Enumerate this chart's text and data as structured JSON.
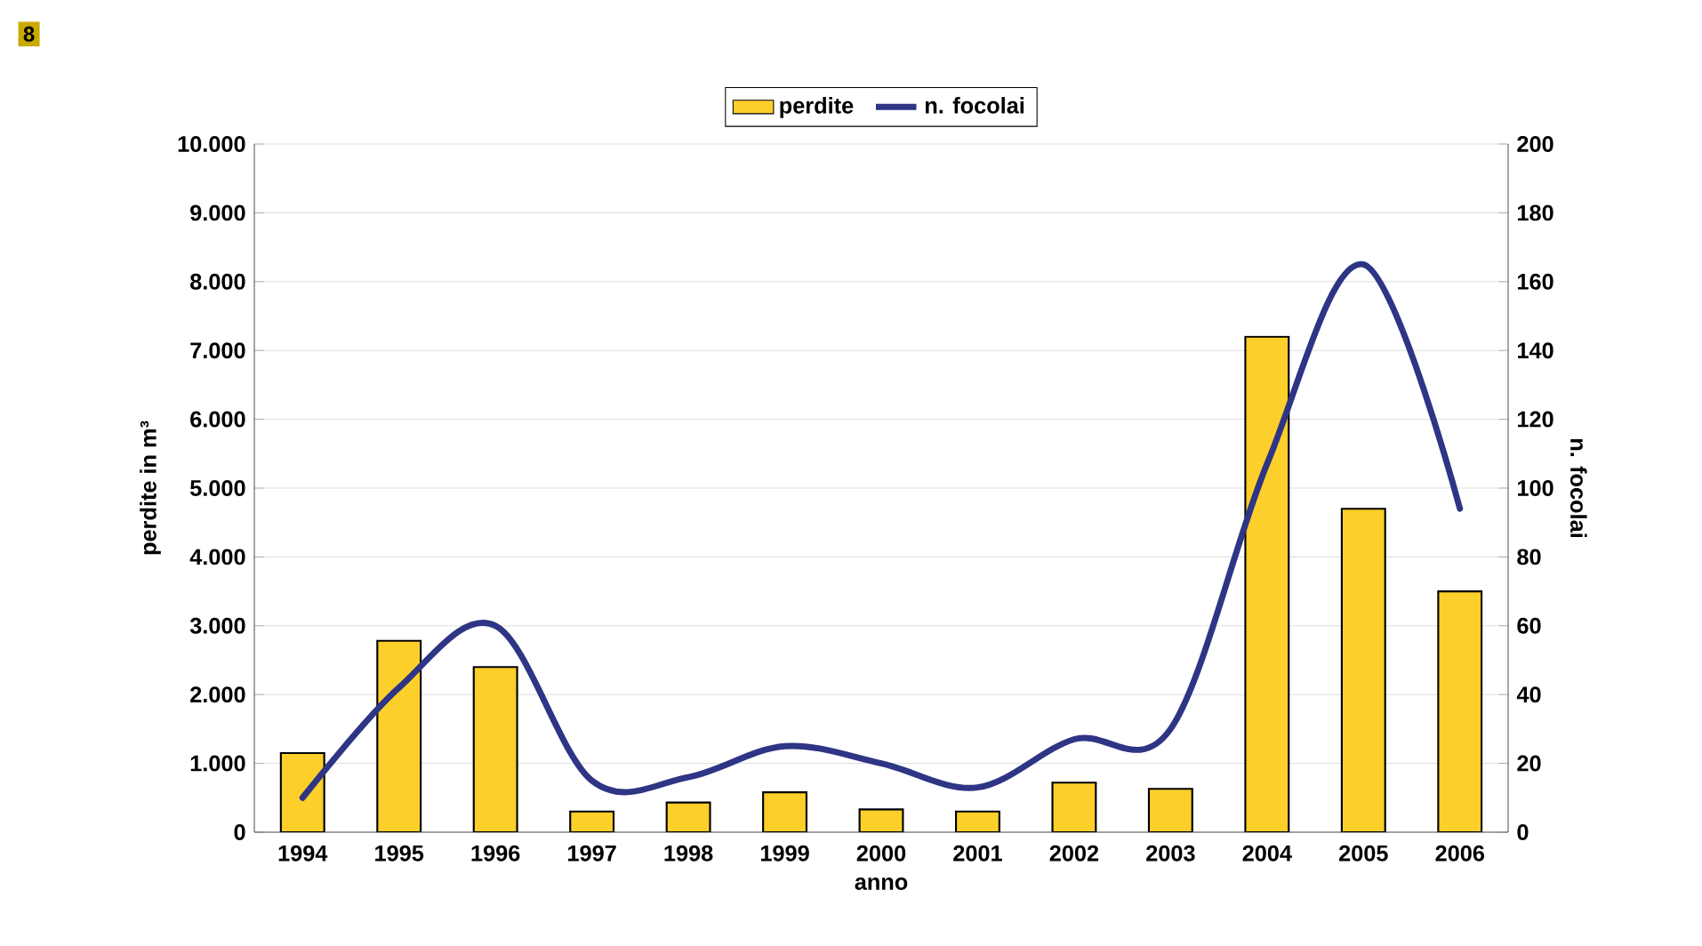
{
  "chart_data": {
    "type": "bar",
    "xlabel": "anno",
    "ylabel": "perdite in m³",
    "y2label": "n. focolai",
    "annotations": [
      "8"
    ],
    "categories": [
      "1994",
      "1995",
      "1996",
      "1997",
      "1998",
      "1999",
      "2000",
      "2001",
      "2002",
      "2003",
      "2004",
      "2005",
      "2006"
    ],
    "series": [
      {
        "name": "perdite",
        "color": "#fccf2a",
        "values": [
          1150,
          2780,
          2400,
          300,
          430,
          580,
          330,
          300,
          720,
          630,
          7200,
          4700,
          3500
        ]
      },
      {
        "name": "n. focolai",
        "type": "line",
        "axis": "y2",
        "color": "#2e3585",
        "values": [
          10,
          42,
          60,
          15,
          16,
          25,
          20,
          13,
          27,
          30,
          107,
          165,
          94
        ]
      }
    ],
    "ylim": [
      0,
      10000
    ],
    "yticks": [
      {
        "value": 0,
        "label": "0"
      },
      {
        "value": 1000,
        "label": "1.000"
      },
      {
        "value": 2000,
        "label": "2.000"
      },
      {
        "value": 3000,
        "label": "3.000"
      },
      {
        "value": 4000,
        "label": "4.000"
      },
      {
        "value": 5000,
        "label": "5.000"
      },
      {
        "value": 6000,
        "label": "6.000"
      },
      {
        "value": 7000,
        "label": "7.000"
      },
      {
        "value": 8000,
        "label": "8.000"
      },
      {
        "value": 9000,
        "label": "9.000"
      },
      {
        "value": 10000,
        "label": "10.000"
      }
    ],
    "y2lim": [
      0,
      200
    ],
    "y2ticks": [
      0,
      20,
      40,
      60,
      80,
      100,
      120,
      140,
      160,
      180,
      200
    ],
    "grid": "y",
    "legend": "top"
  }
}
